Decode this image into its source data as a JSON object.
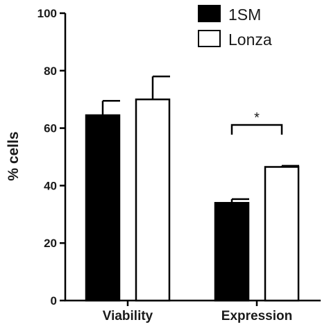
{
  "chart_data": {
    "type": "bar",
    "categories": [
      "Viability",
      "Expression"
    ],
    "series": [
      {
        "name": "1SM",
        "values": [
          64.5,
          34
        ],
        "errors": [
          5,
          1.3
        ],
        "color": "#000000",
        "fill": "solid"
      },
      {
        "name": "Lonza",
        "values": [
          70,
          46.5
        ],
        "errors": [
          8,
          0.4
        ],
        "color": "#ffffff",
        "fill": "outline"
      }
    ],
    "ylabel": "% cells",
    "xlabel": "",
    "ylim": [
      0,
      100
    ],
    "yticks": [
      0,
      20,
      40,
      60,
      80,
      100
    ],
    "legend_position": "top-right",
    "grid": false,
    "annotations": [
      {
        "type": "significance-bracket",
        "category": "Expression",
        "text": "*"
      }
    ]
  }
}
